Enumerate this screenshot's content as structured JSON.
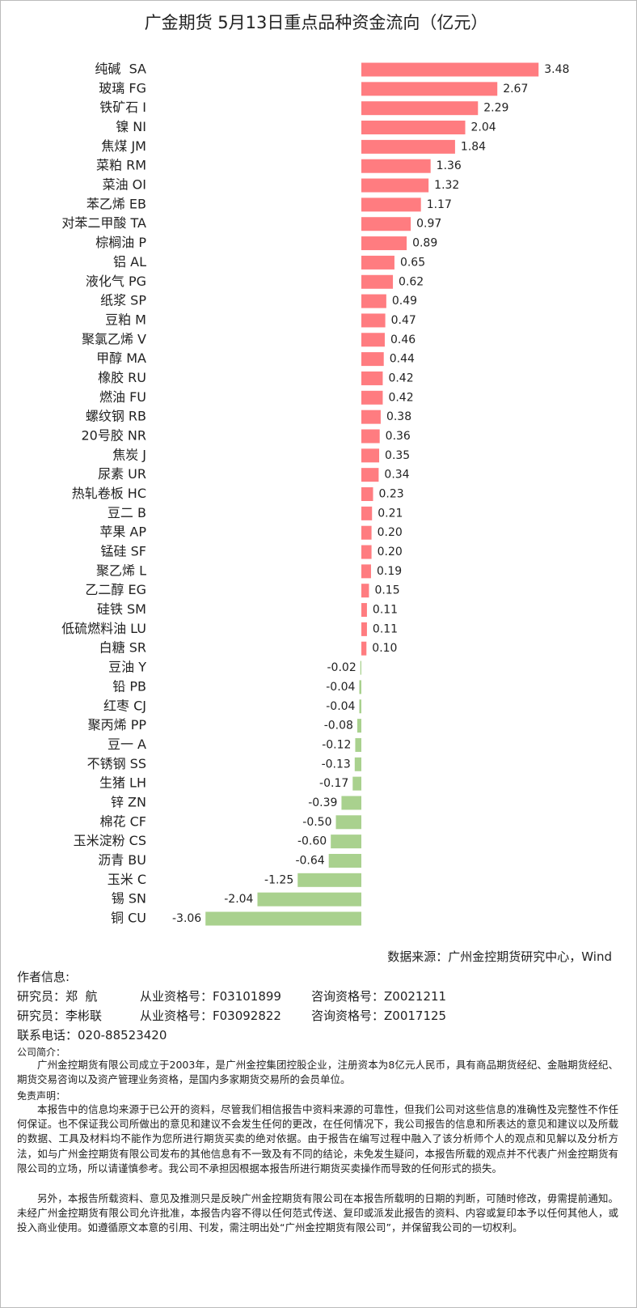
{
  "chart_data": {
    "type": "bar",
    "orientation": "horizontal",
    "title": "广金期货 5月13日重点品种资金流向（亿元）",
    "categories": [
      "纯碱  SA",
      "玻璃 FG",
      "铁矿石 I",
      "镍 NI",
      "焦煤 JM",
      "菜粕 RM",
      "菜油 OI",
      "苯乙烯 EB",
      "对苯二甲酸 TA",
      "棕榈油 P",
      "铝 AL",
      "液化气 PG",
      "纸浆 SP",
      "豆粕 M",
      "聚氯乙烯 V",
      "甲醇 MA",
      "橡胶 RU",
      "燃油 FU",
      "螺纹钢 RB",
      "20号胶 NR",
      "焦炭 J",
      "尿素 UR",
      "热轧卷板 HC",
      "豆二 B",
      "苹果 AP",
      "锰硅 SF",
      "聚乙烯 L",
      "乙二醇 EG",
      "硅铁 SM",
      "低硫燃料油 LU",
      "白糖 SR",
      "豆油 Y",
      "铅 PB",
      "红枣 CJ",
      "聚丙烯 PP",
      "豆一 A",
      "不锈钢 SS",
      "生猪 LH",
      "锌 ZN",
      "棉花 CF",
      "玉米淀粉 CS",
      "沥青 BU",
      "玉米 C",
      "锡 SN",
      "铜 CU"
    ],
    "values": [
      3.48,
      2.67,
      2.29,
      2.04,
      1.84,
      1.36,
      1.32,
      1.17,
      0.97,
      0.89,
      0.65,
      0.62,
      0.49,
      0.47,
      0.46,
      0.44,
      0.42,
      0.42,
      0.38,
      0.36,
      0.35,
      0.34,
      0.23,
      0.21,
      0.2,
      0.2,
      0.19,
      0.15,
      0.11,
      0.11,
      0.1,
      -0.02,
      -0.04,
      -0.04,
      -0.08,
      -0.12,
      -0.13,
      -0.17,
      -0.39,
      -0.5,
      -0.6,
      -0.64,
      -1.25,
      -2.04,
      -3.06
    ],
    "value_labels": [
      "3.48",
      "2.67",
      "2.29",
      "2.04",
      "1.84",
      "1.36",
      "1.32",
      "1.17",
      "0.97",
      "0.89",
      "0.65",
      "0.62",
      "0.49",
      "0.47",
      "0.46",
      "0.44",
      "0.42",
      "0.42",
      "0.38",
      "0.36",
      "0.35",
      "0.34",
      "0.23",
      "0.21",
      "0.20",
      "0.20",
      "0.19",
      "0.15",
      "0.11",
      "0.11",
      "0.10",
      "-0.02",
      "-0.04",
      "-0.04",
      "-0.08",
      "-0.12",
      "-0.13",
      "-0.17",
      "-0.39",
      "-0.50",
      "-0.60",
      "-0.64",
      "-1.25",
      "-2.04",
      "-3.06"
    ],
    "positive_color": "#ff7c80",
    "negative_color": "#a9d18e"
  },
  "footer": {
    "source": "数据来源：广州金控期货研究中心，Wind",
    "author_heading": "作者信息:",
    "authors": [
      {
        "name": "研究员：郑  航",
        "license": "从业资格号：F03101899",
        "consult": "咨询资格号：Z0021211"
      },
      {
        "name": "研究员：李彬联",
        "license": "从业资格号：F03092822",
        "consult": "咨询资格号：Z0017125"
      }
    ],
    "phone": "联系电话：020-88523420",
    "company_heading": "公司简介：",
    "company_text": "广州金控期货有限公司成立于2003年，是广州金控集团控股企业，注册资本为8亿元人民币，具有商品期货经纪、金融期货经纪、期货交易咨询以及资产管理业务资格，是国内多家期货交易所的会员单位。",
    "disclaimer_heading": "免责声明：",
    "disclaimer_1": "本报告中的信息均来源于已公开的资料，尽管我们相信报告中资料来源的可靠性，但我们公司对这些信息的准确性及完整性不作任何保证。也不保证我公司所做出的意见和建议不会发生任何的更改，在任何情况下，我公司报告的信息和所表达的意见和建议以及所载的数据、工具及材料均不能作为您所进行期货买卖的绝对依据。由于报告在编写过程中融入了该分析师个人的观点和见解以及分析方法，如与广州金控期货有限公司发布的其他信息有不一致及有不同的结论，未免发生疑问，本报告所载的观点并不代表广州金控期货有限公司的立场，所以请谨慎参考。我公司不承担因根据本报告所进行期货买卖操作而导致的任何形式的损失。",
    "disclaimer_2": "另外，本报告所载资料、意见及推测只是反映广州金控期货有限公司在本报告所载明的日期的判断，可随时修改，毋需提前通知。未经广州金控期货有限公司允许批准，本报告内容不得以任何范式传送、复印或派发此报告的资料、内容或复印本予以任何其他人，或投入商业使用。如遵循原文本意的引用、刊发，需注明出处“广州金控期货有限公司”，并保留我公司的一切权利。"
  }
}
